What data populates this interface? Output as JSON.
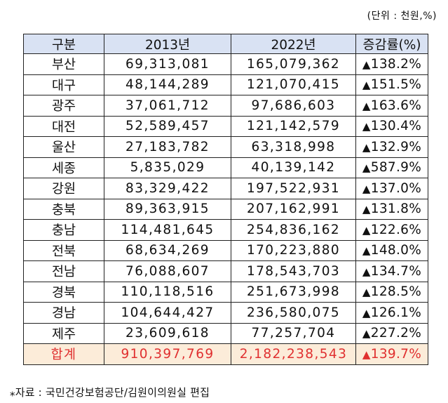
{
  "unit_note": "(단위 : 천원,%)",
  "table": {
    "headers": [
      "구분",
      "2013년",
      "2022년",
      "증감률(%)"
    ],
    "rows": [
      {
        "region": "부산",
        "y2013": "69,313,081",
        "y2022": "165,079,362",
        "rate": "138.2%"
      },
      {
        "region": "대구",
        "y2013": "48,144,289",
        "y2022": "121,070,415",
        "rate": "151.5%"
      },
      {
        "region": "광주",
        "y2013": "37,061,712",
        "y2022": "97,686,603",
        "rate": "163.6%"
      },
      {
        "region": "대전",
        "y2013": "52,589,457",
        "y2022": "121,142,579",
        "rate": "130.4%"
      },
      {
        "region": "울산",
        "y2013": "27,183,782",
        "y2022": "63,318,998",
        "rate": "132.9%"
      },
      {
        "region": "세종",
        "y2013": "5,835,029",
        "y2022": "40,139,142",
        "rate": "587.9%"
      },
      {
        "region": "강원",
        "y2013": "83,329,422",
        "y2022": "197,522,931",
        "rate": "137.0%"
      },
      {
        "region": "충북",
        "y2013": "89,363,915",
        "y2022": "207,162,991",
        "rate": "131.8%"
      },
      {
        "region": "충남",
        "y2013": "114,481,645",
        "y2022": "254,836,162",
        "rate": "122.6%"
      },
      {
        "region": "전북",
        "y2013": "68,634,269",
        "y2022": "170,223,880",
        "rate": "148.0%"
      },
      {
        "region": "전남",
        "y2013": "76,088,607",
        "y2022": "178,543,703",
        "rate": "134.7%"
      },
      {
        "region": "경북",
        "y2013": "110,118,516",
        "y2022": "251,673,998",
        "rate": "128.5%"
      },
      {
        "region": "경남",
        "y2013": "104,644,427",
        "y2022": "236,580,075",
        "rate": "126.1%"
      },
      {
        "region": "제주",
        "y2013": "23,609,618",
        "y2022": "77,257,704",
        "rate": "227.2%"
      }
    ],
    "total": {
      "region": "합계",
      "y2013": "910,397,769",
      "y2022": "2,182,238,543",
      "rate": "139.7%"
    },
    "increase_icon": "up-triangle-icon",
    "colors": {
      "header_bg": "#d9e2f3",
      "total_bg": "#fcecd9",
      "total_text": "#e03030"
    }
  },
  "source_note": "자료 : 국민건강보험공단/김원이의원실 편집",
  "source_icon": "asterisk-icon"
}
